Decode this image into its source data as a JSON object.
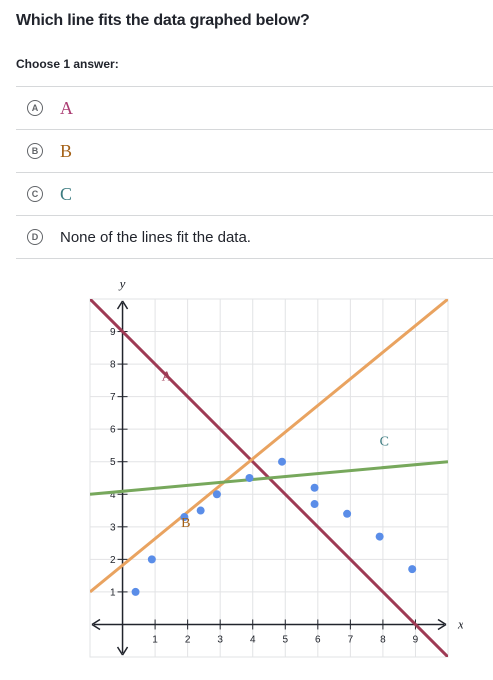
{
  "question": "Which line fits the data graphed below?",
  "instruction": "Choose 1 answer:",
  "choices": [
    {
      "letter": "A",
      "text": "A",
      "color": "#aa3a71",
      "style": "serif"
    },
    {
      "letter": "B",
      "text": "B",
      "color": "#a35f14",
      "style": "serif"
    },
    {
      "letter": "C",
      "text": "C",
      "color": "#3a7a7f",
      "style": "serif"
    },
    {
      "letter": "D",
      "text": "None of the lines fit the data.",
      "color": "#21242c",
      "style": "sans"
    }
  ],
  "chart_data": {
    "type": "scatter",
    "xlabel": "x",
    "ylabel": "y",
    "xlim": [
      -1,
      10
    ],
    "ylim": [
      -1,
      10
    ],
    "x_ticks": [
      1,
      2,
      3,
      4,
      5,
      6,
      7,
      8,
      9
    ],
    "y_ticks": [
      1,
      2,
      3,
      4,
      5,
      6,
      7,
      8,
      9
    ],
    "points": [
      [
        0.4,
        1
      ],
      [
        0.9,
        2
      ],
      [
        1.9,
        3.3
      ],
      [
        2.4,
        3.5
      ],
      [
        2.9,
        4.0
      ],
      [
        3.9,
        4.5
      ],
      [
        4.9,
        5.0
      ],
      [
        5.9,
        4.2
      ],
      [
        5.9,
        3.7
      ],
      [
        6.9,
        3.4
      ],
      [
        7.9,
        2.7
      ],
      [
        8.9,
        1.7
      ]
    ],
    "point_color": "#5a8de8",
    "lines": [
      {
        "label": "A",
        "color": "#9e3a54",
        "p1": [
          -1,
          10
        ],
        "p2": [
          10,
          -1
        ],
        "label_at": [
          1.2,
          7.5
        ]
      },
      {
        "label": "B",
        "color": "#e9a360",
        "p1": [
          -1,
          1
        ],
        "p2": [
          10,
          10
        ],
        "label_at": [
          1.8,
          3.0
        ]
      },
      {
        "label": "C",
        "color": "#77a85c",
        "p1": [
          -1,
          4
        ],
        "p2": [
          10,
          5
        ],
        "label_at": [
          7.9,
          5.5
        ]
      }
    ]
  }
}
